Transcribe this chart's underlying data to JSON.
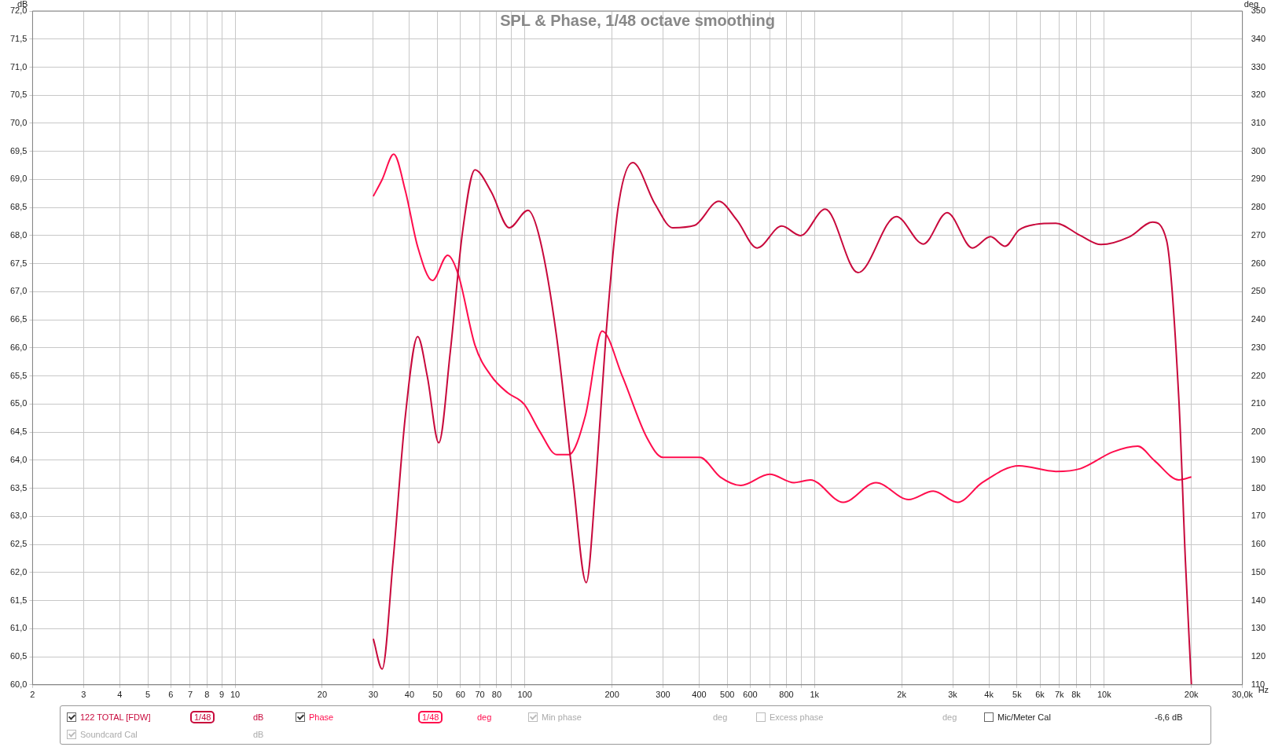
{
  "chart_data": {
    "type": "line",
    "title": "SPL & Phase, 1/48 octave smoothing",
    "xlabel": "Hz",
    "ylabel": "dB",
    "y2label": "deg",
    "xlim": [
      2,
      30000
    ],
    "xticks": [
      2,
      3,
      4,
      5,
      6,
      7,
      8,
      9,
      10,
      20,
      30,
      40,
      50,
      60,
      70,
      80,
      {
        "value": 90,
        "label": null
      },
      100,
      200,
      300,
      400,
      500,
      600,
      {
        "value": 700,
        "label": null
      },
      800,
      {
        "value": 900,
        "label": null
      },
      {
        "value": 1000,
        "label": "1k"
      },
      {
        "value": 2000,
        "label": "2k"
      },
      {
        "value": 3000,
        "label": "3k"
      },
      {
        "value": 4000,
        "label": "4k"
      },
      {
        "value": 5000,
        "label": "5k"
      },
      {
        "value": 6000,
        "label": "6k"
      },
      {
        "value": 7000,
        "label": "7k"
      },
      {
        "value": 8000,
        "label": "8k"
      },
      {
        "value": 9000,
        "label": null
      },
      {
        "value": 10000,
        "label": "10k"
      },
      {
        "value": 20000,
        "label": "20k"
      },
      {
        "value": 30000,
        "label": "30,0k"
      }
    ],
    "ylim": [
      60,
      72
    ],
    "yticks": [
      {
        "value": 60,
        "label": "60,0"
      },
      {
        "value": 60.5,
        "label": "60,5"
      },
      {
        "value": 61,
        "label": "61,0"
      },
      {
        "value": 61.5,
        "label": "61,5"
      },
      {
        "value": 62,
        "label": "62,0"
      },
      {
        "value": 62.5,
        "label": "62,5"
      },
      {
        "value": 63,
        "label": "63,0"
      },
      {
        "value": 63.5,
        "label": "63,5"
      },
      {
        "value": 64,
        "label": "64,0"
      },
      {
        "value": 64.5,
        "label": "64,5"
      },
      {
        "value": 65,
        "label": "65,0"
      },
      {
        "value": 65.5,
        "label": "65,5"
      },
      {
        "value": 66,
        "label": "66,0"
      },
      {
        "value": 66.5,
        "label": "66,5"
      },
      {
        "value": 67,
        "label": "67,0"
      },
      {
        "value": 67.5,
        "label": "67,5"
      },
      {
        "value": 68,
        "label": "68,0"
      },
      {
        "value": 68.5,
        "label": "68,5"
      },
      {
        "value": 69,
        "label": "69,0"
      },
      {
        "value": 69.5,
        "label": "69,5"
      },
      {
        "value": 70,
        "label": "70,0"
      },
      {
        "value": 70.5,
        "label": "70,5"
      },
      {
        "value": 71,
        "label": "71,0"
      },
      {
        "value": 71.5,
        "label": "71,5"
      },
      {
        "value": 72,
        "label": "72,0"
      }
    ],
    "y2lim": [
      110,
      350
    ],
    "y2ticks": [
      110,
      120,
      130,
      140,
      150,
      160,
      170,
      180,
      190,
      200,
      210,
      220,
      230,
      240,
      250,
      260,
      270,
      280,
      290,
      300,
      310,
      320,
      330,
      340,
      350
    ],
    "grid": true,
    "log": "x",
    "legend": "bottom",
    "line_style": "solid",
    "series": [
      {
        "name": "122 TOTAL [FDW]",
        "color": "#c8093c",
        "x": [
          30,
          32.2,
          35.1,
          38.7,
          42.7,
          46.1,
          50.5,
          55.3,
          61,
          67.3,
          76.6,
          88.4,
          102.6,
          113,
          128.8,
          146.8,
          163,
          176,
          190.5,
          210,
          236,
          281,
          324,
          385,
          467,
          539,
          634,
          771,
          895,
          1089,
          1413,
          1916,
          2375,
          2871,
          3510,
          4049,
          4550,
          5082,
          5794,
          6808,
          8279,
          9750,
          12240,
          14690,
          16410,
          18110,
          19070,
          20000
        ],
        "values": [
          60.82,
          60.28,
          62.2,
          64.78,
          66.2,
          65.49,
          64.31,
          65.92,
          68.07,
          69.17,
          68.78,
          68.14,
          68.45,
          67.92,
          66.2,
          63.63,
          61.82,
          63.63,
          66.2,
          68.5,
          69.3,
          68.57,
          68.14,
          68.18,
          68.61,
          68.28,
          67.78,
          68.17,
          68,
          68.47,
          67.34,
          68.34,
          67.85,
          68.41,
          67.78,
          67.98,
          67.81,
          68.1,
          68.2,
          68.22,
          68,
          67.84,
          67.98,
          68.24,
          67.92,
          65.06,
          62.2,
          60
        ]
      },
      {
        "name": "Phase",
        "color": "#ff0d4d",
        "axis": "y2",
        "x": [
          30,
          32.2,
          35.3,
          38.7,
          42.7,
          48,
          54.2,
          59,
          67.3,
          76.6,
          87.3,
          99.4,
          113,
          128.8,
          142,
          162,
          185,
          217,
          264,
          300,
          402,
          473,
          557,
          700,
          850,
          968,
          1256,
          1630,
          2113,
          2570,
          3120,
          3793,
          5082,
          6808,
          8279,
          10740,
          13060,
          14860,
          18110,
          20000
        ],
        "values": [
          284,
          290,
          299,
          286,
          266,
          254,
          263,
          256,
          231,
          220,
          214,
          210,
          200,
          192,
          192,
          206,
          236,
          220,
          198,
          191,
          191,
          184,
          181,
          185,
          182,
          183,
          175,
          182,
          176,
          179,
          175,
          182,
          188,
          186,
          187,
          193,
          195,
          190,
          183,
          184
        ]
      }
    ],
    "annotations": [
      "1/48",
      "dB",
      "1/48",
      "deg",
      "Min phase",
      "deg",
      "Excess phase",
      "deg",
      "Mic/Meter Cal",
      "-6,6 dB",
      "Soundcard Cal",
      "dB"
    ]
  }
}
